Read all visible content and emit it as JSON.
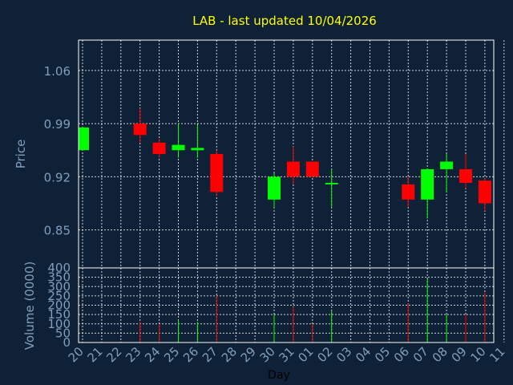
{
  "chart_data": {
    "type": "candlestick",
    "title": "LAB - last updated 10/04/2026",
    "xlabel": "Day",
    "colors": {
      "background": "#0f2136",
      "plot_border": "#ffffff",
      "grid": "#ffffff",
      "title": "#ffff00",
      "axis_text": "#7f9fbf",
      "up": "#00ff00",
      "down": "#ff0000"
    },
    "x_ticks": [
      "20",
      "21",
      "22",
      "23",
      "24",
      "25",
      "26",
      "27",
      "28",
      "29",
      "30",
      "31",
      "01",
      "02",
      "03",
      "04",
      "05",
      "06",
      "07",
      "08",
      "09",
      "10",
      "11"
    ],
    "price_panel": {
      "ylabel": "Price",
      "ylim": [
        0.8,
        1.1
      ],
      "yticks": [
        "1.06",
        "0.99",
        "0.92",
        "0.85"
      ],
      "ytick_values": [
        1.06,
        0.99,
        0.92,
        0.85
      ],
      "grid": true
    },
    "volume_panel": {
      "ylabel": "Volume (0000)",
      "ylim": [
        0,
        400
      ],
      "yticks": [
        "0",
        "50",
        "100",
        "150",
        "200",
        "250",
        "300",
        "350",
        "400"
      ],
      "ytick_values": [
        0,
        50,
        100,
        150,
        200,
        250,
        300,
        350,
        400
      ],
      "grid": true
    },
    "candles": [
      {
        "day": "20",
        "open": 0.955,
        "high": 0.985,
        "low": 0.955,
        "close": 0.985
      },
      {
        "day": "23",
        "open": 0.99,
        "high": 1.01,
        "low": 0.965,
        "close": 0.975
      },
      {
        "day": "24",
        "open": 0.965,
        "high": 0.97,
        "low": 0.945,
        "close": 0.95
      },
      {
        "day": "25",
        "open": 0.955,
        "high": 0.99,
        "low": 0.945,
        "close": 0.962
      },
      {
        "day": "26",
        "open": 0.955,
        "high": 0.988,
        "low": 0.945,
        "close": 0.958
      },
      {
        "day": "27",
        "open": 0.95,
        "high": 0.955,
        "low": 0.895,
        "close": 0.9
      },
      {
        "day": "30",
        "open": 0.89,
        "high": 0.925,
        "low": 0.88,
        "close": 0.92
      },
      {
        "day": "31",
        "open": 0.94,
        "high": 0.96,
        "low": 0.91,
        "close": 0.92
      },
      {
        "day": "01",
        "open": 0.94,
        "high": 0.94,
        "low": 0.92,
        "close": 0.92
      },
      {
        "day": "02",
        "open": 0.91,
        "high": 0.93,
        "low": 0.88,
        "close": 0.912
      },
      {
        "day": "06",
        "open": 0.91,
        "high": 0.92,
        "low": 0.88,
        "close": 0.89
      },
      {
        "day": "07",
        "open": 0.89,
        "high": 0.93,
        "low": 0.865,
        "close": 0.93
      },
      {
        "day": "08",
        "open": 0.93,
        "high": 0.95,
        "low": 0.9,
        "close": 0.94
      },
      {
        "day": "09",
        "open": 0.93,
        "high": 0.95,
        "low": 0.905,
        "close": 0.912
      },
      {
        "day": "10",
        "open": 0.915,
        "high": 0.918,
        "low": 0.875,
        "close": 0.885
      }
    ],
    "volumes": [
      {
        "day": "23",
        "value": 110,
        "direction": "down"
      },
      {
        "day": "24",
        "value": 100,
        "direction": "down"
      },
      {
        "day": "25",
        "value": 120,
        "direction": "up"
      },
      {
        "day": "26",
        "value": 110,
        "direction": "up"
      },
      {
        "day": "27",
        "value": 250,
        "direction": "down"
      },
      {
        "day": "30",
        "value": 150,
        "direction": "up"
      },
      {
        "day": "31",
        "value": 190,
        "direction": "down"
      },
      {
        "day": "01",
        "value": 100,
        "direction": "down"
      },
      {
        "day": "02",
        "value": 170,
        "direction": "up"
      },
      {
        "day": "06",
        "value": 210,
        "direction": "down"
      },
      {
        "day": "07",
        "value": 340,
        "direction": "up"
      },
      {
        "day": "08",
        "value": 150,
        "direction": "up"
      },
      {
        "day": "09",
        "value": 150,
        "direction": "down"
      },
      {
        "day": "10",
        "value": 270,
        "direction": "down"
      }
    ]
  }
}
